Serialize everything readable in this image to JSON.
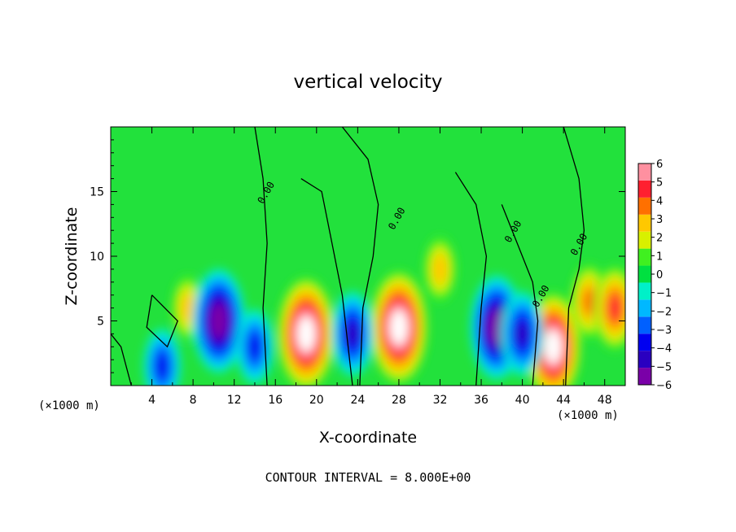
{
  "chart_data": {
    "type": "heatmap",
    "title": "vertical velocity",
    "xlabel": "X-coordinate",
    "ylabel": "Z-coordinate",
    "x_unit_label": "(×1000 m)",
    "xlim": [
      0,
      50
    ],
    "ylim": [
      0,
      20
    ],
    "x_ticks": [
      4,
      8,
      12,
      16,
      20,
      24,
      28,
      32,
      36,
      40,
      44,
      48
    ],
    "x_tick_labels": [
      "4",
      "8",
      "12",
      "16",
      "20",
      "24",
      "28",
      "32",
      "36",
      "40",
      "44",
      "48"
    ],
    "y_ticks": [
      5,
      10,
      15
    ],
    "y_tick_labels": [
      "5",
      "10",
      "15"
    ],
    "colorbar": {
      "min": -6,
      "max": 6,
      "ticks": [
        6,
        5,
        4,
        3,
        2,
        1,
        0,
        -1,
        -2,
        -3,
        -4,
        -5,
        -6
      ],
      "tick_labels": [
        "6",
        "5",
        "4",
        "3",
        "2",
        "1",
        "0",
        "−1",
        "−2",
        "−3",
        "−4",
        "−5",
        "−6"
      ],
      "colors": [
        "#7a00a8",
        "#2a00c0",
        "#0000f0",
        "#0060ff",
        "#00b8ff",
        "#00f0c8",
        "#00e040",
        "#40f020",
        "#d8f000",
        "#ffc800",
        "#ff7000",
        "#ff2030",
        "#ff90a0"
      ]
    },
    "contour_label": "0.00",
    "contour_interval_text": "CONTOUR INTERVAL = 8.000E+00",
    "features": [
      {
        "x": 19,
        "z": 4,
        "w": 8
      },
      {
        "x": 28,
        "z": 4.5,
        "w": 8
      },
      {
        "x": 32,
        "z": 9,
        "w": 3
      },
      {
        "x": 43,
        "z": 3,
        "w": 7.5
      },
      {
        "x": 46.5,
        "z": 6.5,
        "w": 4
      },
      {
        "x": 49,
        "z": 6,
        "w": 5
      },
      {
        "x": 7.5,
        "z": 6,
        "w": 3
      },
      {
        "x": 10.5,
        "z": 5,
        "w": -7
      },
      {
        "x": 37.5,
        "z": 4.5,
        "w": -7
      },
      {
        "x": 40,
        "z": 4,
        "w": -5
      },
      {
        "x": 23.5,
        "z": 4,
        "w": -5
      },
      {
        "x": 5,
        "z": 1.5,
        "w": -4
      },
      {
        "x": 14,
        "z": 3,
        "w": -4
      }
    ]
  }
}
